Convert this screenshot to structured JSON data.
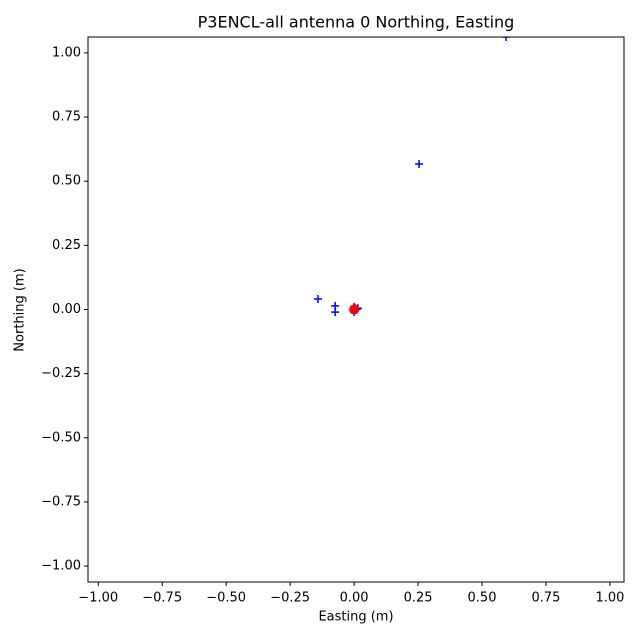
{
  "chart_data": {
    "type": "scatter",
    "title": "P3ENCL-all antenna 0 Northing, Easting",
    "x_label": "Easting (m)",
    "y_label": "Northing (m)",
    "xlim": [
      -1.04,
      1.055
    ],
    "ylim": [
      -1.062,
      1.062
    ],
    "xticks": [
      {
        "value": -1.0,
        "label": "−1.00"
      },
      {
        "value": -0.75,
        "label": "−0.75"
      },
      {
        "value": -0.5,
        "label": "−0.50"
      },
      {
        "value": -0.25,
        "label": "−0.25"
      },
      {
        "value": 0,
        "label": "0.00"
      },
      {
        "value": 0.25,
        "label": "0.25"
      },
      {
        "value": 0.5,
        "label": "0.50"
      },
      {
        "value": 0.75,
        "label": "0.75"
      },
      {
        "value": 1.0,
        "label": "1.00"
      }
    ],
    "yticks": [
      {
        "value": -1.0,
        "label": "−1.00"
      },
      {
        "value": -0.75,
        "label": "−0.75"
      },
      {
        "value": -0.5,
        "label": "−0.50"
      },
      {
        "value": -0.25,
        "label": "−0.25"
      },
      {
        "value": 0,
        "label": "0.00"
      },
      {
        "value": 0.25,
        "label": "0.25"
      },
      {
        "value": 0.5,
        "label": "0.50"
      },
      {
        "value": 0.75,
        "label": "0.75"
      },
      {
        "value": 1.0,
        "label": "1.00"
      }
    ],
    "grid": false,
    "series": [
      {
        "color": "#0000ff",
        "marker": "plus",
        "x": [
          0.594,
          0.254,
          -0.141,
          -0.074,
          -0.074,
          0.0,
          0.01,
          0.015,
          0.0,
          0.005
        ],
        "values": [
          1.062,
          0.567,
          0.041,
          0.014,
          -0.01,
          0.01,
          0.0,
          0.005,
          -0.01,
          0.005
        ]
      },
      {
        "color": "#ff0000",
        "marker": "circle",
        "x": [
          0.0
        ],
        "values": [
          0.0
        ]
      }
    ]
  }
}
